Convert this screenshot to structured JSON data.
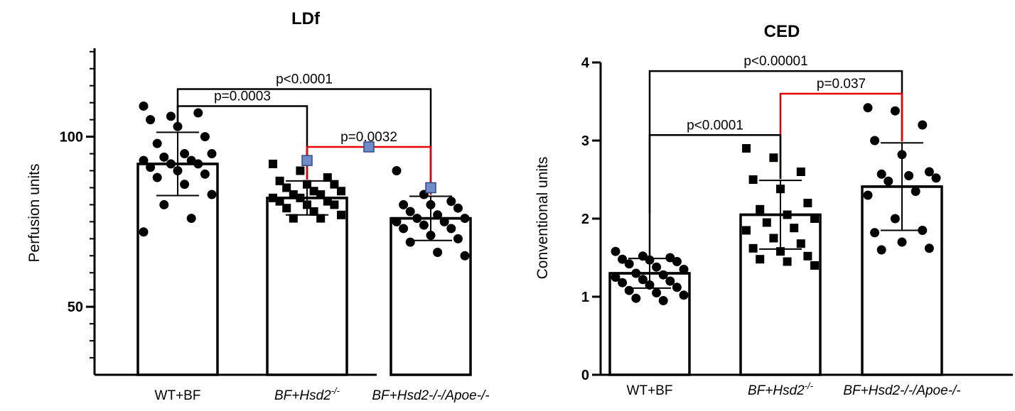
{
  "chart_data": [
    {
      "type": "bar",
      "title": "LDf",
      "ylabel": "Perfusion units",
      "ylim": [
        30,
        126
      ],
      "yticks": [
        50,
        100
      ],
      "grid": false,
      "categories": [
        "WT+BF",
        "BF+Hsd2-/-",
        "BF+Hsd2-/-/Apoe-/-"
      ],
      "category_labels": [
        {
          "text": "WT+BF",
          "sup": "",
          "italic": false
        },
        {
          "text": "BF+Hsd2",
          "sup": "-/-",
          "italic": true
        },
        {
          "text": "BF+Hsd2-/-/Apoe-/-",
          "sup": "",
          "italic": true
        }
      ],
      "values": [
        92,
        82,
        76
      ],
      "sd": [
        9.3,
        5.0,
        6.5
      ],
      "points": [
        {
          "marker": "circle",
          "y": [
            109,
            106,
            107,
            105,
            103,
            100,
            98,
            95,
            95,
            94,
            93,
            93,
            92,
            92,
            91,
            90,
            89,
            88,
            86,
            83,
            80,
            76,
            72
          ]
        },
        {
          "marker": "square",
          "y": [
            92,
            90,
            88,
            87,
            86,
            86,
            85,
            84,
            84,
            83,
            83,
            82,
            82,
            81,
            81,
            80,
            80,
            79,
            78,
            77,
            76,
            76
          ]
        },
        {
          "marker": "circle",
          "y": [
            90,
            83,
            81,
            80,
            80,
            79,
            78,
            77,
            76,
            76,
            75,
            75,
            74,
            73,
            73,
            71,
            70,
            69,
            66,
            65
          ]
        }
      ],
      "comparisons": [
        {
          "label": "p<0.0001",
          "from": 0,
          "to": 2,
          "y": 114,
          "color": "#000000"
        },
        {
          "label": "p=0.0003",
          "from": 0,
          "to": 1,
          "y": 109,
          "color": "#000000"
        },
        {
          "label": "p=0.0032",
          "from": 1,
          "to": 2,
          "y": 97,
          "color": "#e60000"
        }
      ]
    },
    {
      "type": "bar",
      "title": "CED",
      "ylabel": "Conventional units",
      "ylim": [
        0,
        4.0
      ],
      "yticks": [
        0,
        1,
        2,
        3,
        4
      ],
      "grid": false,
      "categories": [
        "WT+BF",
        "BF+Hsd2-/-",
        "BF+Hsd2-/-/Apoe-/-"
      ],
      "category_labels": [
        {
          "text": "WT+BF",
          "sup": "",
          "italic": false
        },
        {
          "text": "BF+Hsd2",
          "sup": "-/-",
          "italic": true
        },
        {
          "text": "BF+Hsd2-/-/Apoe-/-",
          "sup": "",
          "italic": true
        }
      ],
      "values": [
        1.3,
        2.05,
        2.41
      ],
      "sd": [
        0.19,
        0.44,
        0.56
      ],
      "points": [
        {
          "marker": "circle",
          "y": [
            1.58,
            1.52,
            1.5,
            1.48,
            1.47,
            1.45,
            1.42,
            1.38,
            1.35,
            1.3,
            1.28,
            1.25,
            1.22,
            1.2,
            1.18,
            1.15,
            1.12,
            1.08,
            1.05,
            1.02,
            0.98,
            0.95
          ]
        },
        {
          "marker": "square",
          "y": [
            2.9,
            2.78,
            2.6,
            2.5,
            2.38,
            2.2,
            2.12,
            2.05,
            2.0,
            1.95,
            1.88,
            1.85,
            1.75,
            1.68,
            1.62,
            1.58,
            1.52,
            1.48,
            1.45,
            1.4
          ]
        },
        {
          "marker": "circle",
          "y": [
            3.42,
            3.38,
            3.2,
            3.0,
            2.82,
            2.6,
            2.57,
            2.55,
            2.52,
            2.48,
            2.35,
            2.3,
            2.0,
            1.85,
            1.82,
            1.7,
            1.62,
            1.6
          ]
        }
      ],
      "comparisons": [
        {
          "label": "p<0.00001",
          "from": 0,
          "to": 2,
          "y": 3.89,
          "color": "#000000"
        },
        {
          "label": "p=0.037",
          "from": 1,
          "to": 2,
          "y": 3.6,
          "color": "#e60000"
        },
        {
          "label": "p<0.0001",
          "from": 0,
          "to": 1,
          "y": 3.07,
          "color": "#000000"
        }
      ]
    }
  ]
}
